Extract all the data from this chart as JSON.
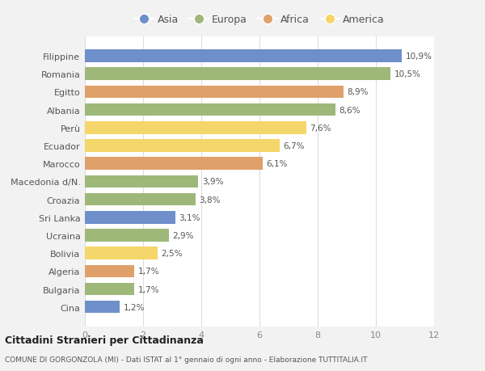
{
  "countries": [
    "Cina",
    "Bulgaria",
    "Algeria",
    "Bolivia",
    "Ucraina",
    "Sri Lanka",
    "Croazia",
    "Macedonia d/N.",
    "Marocco",
    "Ecuador",
    "Perù",
    "Albania",
    "Egitto",
    "Romania",
    "Filippine"
  ],
  "values": [
    1.2,
    1.7,
    1.7,
    2.5,
    2.9,
    3.1,
    3.8,
    3.9,
    6.1,
    6.7,
    7.6,
    8.6,
    8.9,
    10.5,
    10.9
  ],
  "colors": [
    "#6e8fc9",
    "#9eb87a",
    "#e0a06a",
    "#f5d66a",
    "#9eb87a",
    "#6e8fc9",
    "#9eb87a",
    "#9eb87a",
    "#e0a06a",
    "#f5d66a",
    "#f5d66a",
    "#9eb87a",
    "#e0a06a",
    "#9eb87a",
    "#6e8fc9"
  ],
  "labels": [
    "1,2%",
    "1,7%",
    "1,7%",
    "2,5%",
    "2,9%",
    "3,1%",
    "3,8%",
    "3,9%",
    "6,1%",
    "6,7%",
    "7,6%",
    "8,6%",
    "8,9%",
    "10,5%",
    "10,9%"
  ],
  "legend_labels": [
    "Asia",
    "Europa",
    "Africa",
    "America"
  ],
  "legend_colors": [
    "#6e8fc9",
    "#9eb87a",
    "#e0a06a",
    "#f5d66a"
  ],
  "title": "Cittadini Stranieri per Cittadinanza",
  "subtitle": "COMUNE DI GORGONZOLA (MI) - Dati ISTAT al 1° gennaio di ogni anno - Elaborazione TUTTITALIA.IT",
  "xlim": [
    0,
    12
  ],
  "xticks": [
    0,
    2,
    4,
    6,
    8,
    10,
    12
  ],
  "background_color": "#f2f2f2",
  "plot_bg_color": "#ffffff"
}
